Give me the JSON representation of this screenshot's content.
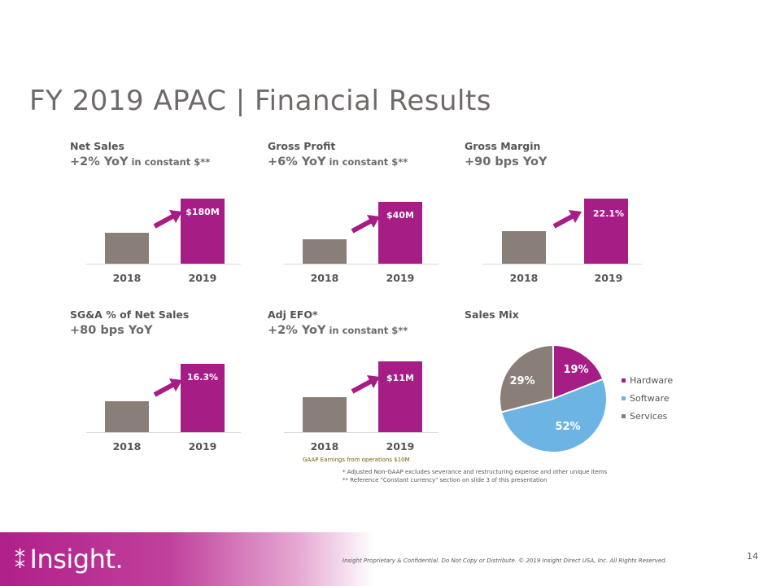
{
  "title": "FY 2019 APAC | Financial Results",
  "panels": [
    {
      "title": "Net Sales",
      "sub_main": "+2% YoY",
      "sub_small": " in constant $**",
      "label": "$180M",
      "years": [
        "2018",
        "2019"
      ]
    },
    {
      "title": "Gross Profit",
      "sub_main": "+6% YoY",
      "sub_small": " in constant $**",
      "label": "$40M",
      "years": [
        "2018",
        "2019"
      ]
    },
    {
      "title": "Gross Margin",
      "sub_main": "+90 bps YoY",
      "sub_small": "",
      "label": "22.1%",
      "years": [
        "2018",
        "2019"
      ]
    },
    {
      "title": "SG&A % of Net Sales",
      "sub_main": "+80 bps YoY",
      "sub_small": "",
      "label": "16.3%",
      "years": [
        "2018",
        "2019"
      ]
    },
    {
      "title": "Adj EFO*",
      "sub_main": "+2% YoY",
      "sub_small": " in constant $**",
      "label": "$11M",
      "years": [
        "2018",
        "2019"
      ]
    }
  ],
  "sales_mix": {
    "title": "Sales Mix",
    "slices": [
      {
        "name": "Hardware",
        "label": "19%",
        "value": 19,
        "color": "#a71d86"
      },
      {
        "name": "Software",
        "label": "52%",
        "value": 52,
        "color": "#6cb4e4"
      },
      {
        "name": "Services",
        "label": "29%",
        "value": 29,
        "color": "#8a7f78"
      }
    ]
  },
  "notes": {
    "gaap": "GAAP Earnings from operations $10M",
    "note1": "*   Adjusted Non-GAAP excludes severance and restructuring  expense and other unique items",
    "note2": "** Reference \"Constant currency\" section on slide 3 of this presentation"
  },
  "footer": {
    "logo": "Insight.",
    "copyright": "Insight Proprietary & Confidential. Do Not Copy or Distribute.  © 2019 Insight Direct USA, Inc.  All Rights Reserved.",
    "page": "14"
  },
  "colors": {
    "accent": "#a71d86",
    "prior": "#8a7f78",
    "software": "#6cb4e4"
  }
}
